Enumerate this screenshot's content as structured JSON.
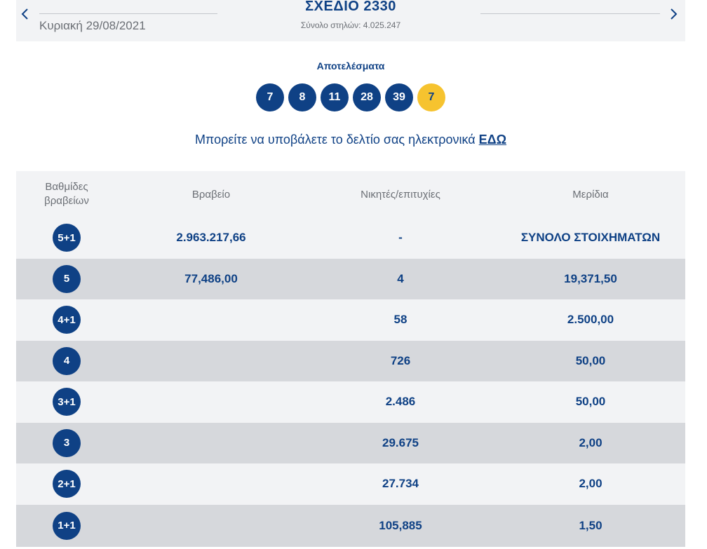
{
  "header": {
    "date": "Κυριακή 29/08/2021",
    "draw_title": "ΣΧΕΔΙΟ 2330",
    "total_columns": "Σύνολο στηλών: 4.025.247"
  },
  "results": {
    "title": "Αποτελέσματα",
    "numbers": [
      "7",
      "8",
      "11",
      "28",
      "39"
    ],
    "joker": "7"
  },
  "submit": {
    "text": "Μπορείτε να υποβάλετε το δελτίο σας ηλεκτρονικά",
    "link": "ΕΔΩ"
  },
  "table": {
    "headers": {
      "tier_line1": "Βαθμίδες",
      "tier_line2": "βραβείων",
      "prize": "Βραβείο",
      "winners": "Νικητές/επιτυχίες",
      "share": "Μερίδια"
    },
    "rows": [
      {
        "tier": "5+1",
        "prize": "2.963.217,66",
        "winners": "-",
        "share": "ΣΥΝΟΛΟ ΣΤΟΙΧΗΜΑΤΩΝ"
      },
      {
        "tier": "5",
        "prize": "77,486,00",
        "winners": "4",
        "share": "19,371,50"
      },
      {
        "tier": "4+1",
        "prize": "",
        "winners": "58",
        "share": "2.500,00"
      },
      {
        "tier": "4",
        "prize": "",
        "winners": "726",
        "share": "50,00"
      },
      {
        "tier": "3+1",
        "prize": "",
        "winners": "2.486",
        "share": "50,00"
      },
      {
        "tier": "3",
        "prize": "",
        "winners": "29.675",
        "share": "2,00"
      },
      {
        "tier": "2+1",
        "prize": "",
        "winners": "27.734",
        "share": "2,00"
      },
      {
        "tier": "1+1",
        "prize": "",
        "winners": "105,885",
        "share": "1,50"
      }
    ]
  },
  "colors": {
    "brand_blue": "#0f4185",
    "joker_yellow": "#f6c32f",
    "row_light": "#f2f3f5",
    "row_dark": "#d6d8dc"
  },
  "icons": {
    "prev": "chevron-left-icon",
    "next": "chevron-right-icon"
  }
}
